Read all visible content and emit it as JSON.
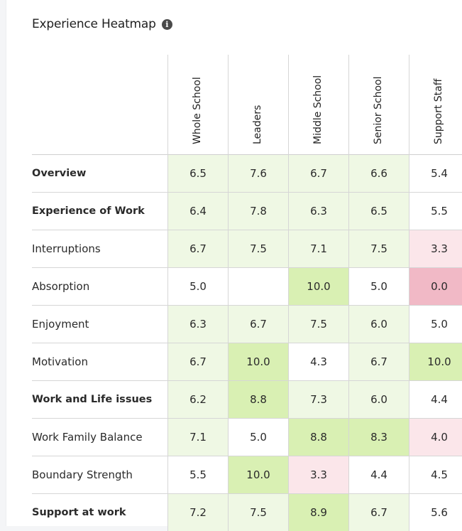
{
  "header": {
    "title": "Experience Heatmap",
    "info_icon": "info-icon"
  },
  "chart_data": {
    "type": "heatmap",
    "title": "Experience Heatmap",
    "columns": [
      "Whole School",
      "Leaders",
      "Middle School",
      "Senior School",
      "Support Staff"
    ],
    "rows": [
      {
        "label": "Overview",
        "bold": true,
        "values": [
          "6.5",
          "7.6",
          "6.7",
          "6.6",
          "5.4"
        ]
      },
      {
        "label": "Experience of Work",
        "bold": true,
        "values": [
          "6.4",
          "7.8",
          "6.3",
          "6.5",
          "5.5"
        ]
      },
      {
        "label": "Interruptions",
        "bold": false,
        "values": [
          "6.7",
          "7.5",
          "7.1",
          "7.5",
          "3.3"
        ]
      },
      {
        "label": "Absorption",
        "bold": false,
        "values": [
          "5.0",
          "",
          "10.0",
          "5.0",
          "0.0"
        ]
      },
      {
        "label": "Enjoyment",
        "bold": false,
        "values": [
          "6.3",
          "6.7",
          "7.5",
          "6.0",
          "5.0"
        ]
      },
      {
        "label": "Motivation",
        "bold": false,
        "values": [
          "6.7",
          "10.0",
          "4.3",
          "6.7",
          "10.0"
        ]
      },
      {
        "label": "Work and Life issues",
        "bold": true,
        "values": [
          "6.2",
          "8.8",
          "7.3",
          "6.0",
          "4.4"
        ]
      },
      {
        "label": "Work Family Balance",
        "bold": false,
        "values": [
          "7.1",
          "5.0",
          "8.8",
          "8.3",
          "4.0"
        ]
      },
      {
        "label": "Boundary Strength",
        "bold": false,
        "values": [
          "5.5",
          "10.0",
          "3.3",
          "4.4",
          "4.5"
        ]
      },
      {
        "label": "Support at work",
        "bold": true,
        "values": [
          "7.2",
          "7.5",
          "8.9",
          "6.7",
          "5.6"
        ]
      }
    ],
    "colors": {
      "light_green": "#eff8e4",
      "strong_green": "#d9f0b3",
      "neutral": "#ffffff",
      "light_pink": "#fbe6ea",
      "strong_pink": "#f1b9c6"
    }
  }
}
